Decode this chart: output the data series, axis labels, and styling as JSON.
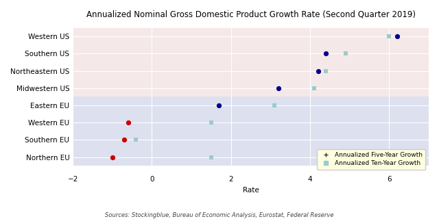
{
  "title": "Annualized Nominal Gross Domestic Product Growth Rate (Second Quarter 2019)",
  "xlabel": "Rate",
  "source_text": "Sources: Stockingblue, Bureau of Economic Analysis, Eurostat, Federal Reserve",
  "categories": [
    "Northern EU",
    "Southern EU",
    "Western EU",
    "Eastern EU",
    "Midwestern US",
    "Northeastern US",
    "Southern US",
    "Western US"
  ],
  "five_year": [
    -1.0,
    -0.7,
    -0.6,
    1.7,
    3.2,
    4.2,
    4.4,
    6.2
  ],
  "ten_year": [
    1.5,
    -0.4,
    1.5,
    3.1,
    4.1,
    4.4,
    4.9,
    6.0
  ],
  "dot_colors_five": [
    "#cc0000",
    "#cc0000",
    "#cc0000",
    "#00008b",
    "#00008b",
    "#00008b",
    "#00008b",
    "#00008b"
  ],
  "ten_year_color": "#99cccc",
  "bg_eu": "#dde0ef",
  "bg_us": "#f5e8e8",
  "xlim": [
    -2,
    7
  ],
  "xticks": [
    -2,
    0,
    2,
    4,
    6
  ],
  "title_fontsize": 8.5,
  "label_fontsize": 7.5,
  "tick_fontsize": 7.5,
  "legend_fontsize": 6.5
}
